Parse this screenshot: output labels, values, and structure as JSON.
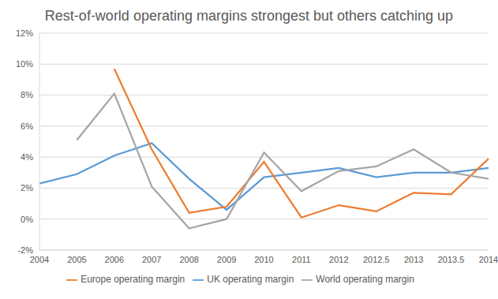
{
  "chart_data": {
    "type": "line",
    "title": "Rest-of-world operating margins strongest but others catching up",
    "categories": [
      "2004",
      "2005",
      "2006",
      "2007",
      "2008",
      "2009",
      "2010",
      "2011",
      "2012",
      "2012.5",
      "2013",
      "2013.5",
      "2014"
    ],
    "series": [
      {
        "name": "UK operating margin",
        "color": "#5b9bd5",
        "values": [
          2.3,
          2.9,
          4.1,
          4.9,
          2.6,
          0.6,
          2.7,
          3.0,
          3.3,
          2.7,
          3.0,
          3.0,
          3.3
        ]
      },
      {
        "name": "Europe operating margin",
        "color": "#ed7d31",
        "values": [
          null,
          null,
          9.7,
          4.5,
          0.4,
          0.8,
          3.7,
          0.1,
          0.9,
          0.5,
          1.7,
          1.6,
          3.9
        ]
      },
      {
        "name": "World operating margin",
        "color": "#a5a5a5",
        "values": [
          null,
          5.1,
          8.1,
          2.1,
          -0.6,
          0.0,
          4.3,
          1.8,
          3.1,
          3.4,
          4.5,
          3.0,
          2.6
        ]
      }
    ],
    "ylim": [
      -2,
      12
    ],
    "yticks": [
      {
        "value": -2,
        "label": "-2%"
      },
      {
        "value": 0,
        "label": "0%"
      },
      {
        "value": 2,
        "label": "2%"
      },
      {
        "value": 4,
        "label": "4%"
      },
      {
        "value": 6,
        "label": "6%"
      },
      {
        "value": 8,
        "label": "8%"
      },
      {
        "value": 10,
        "label": "10%"
      },
      {
        "value": 12,
        "label": "12%"
      }
    ],
    "grid": true,
    "legend": "bottom"
  }
}
